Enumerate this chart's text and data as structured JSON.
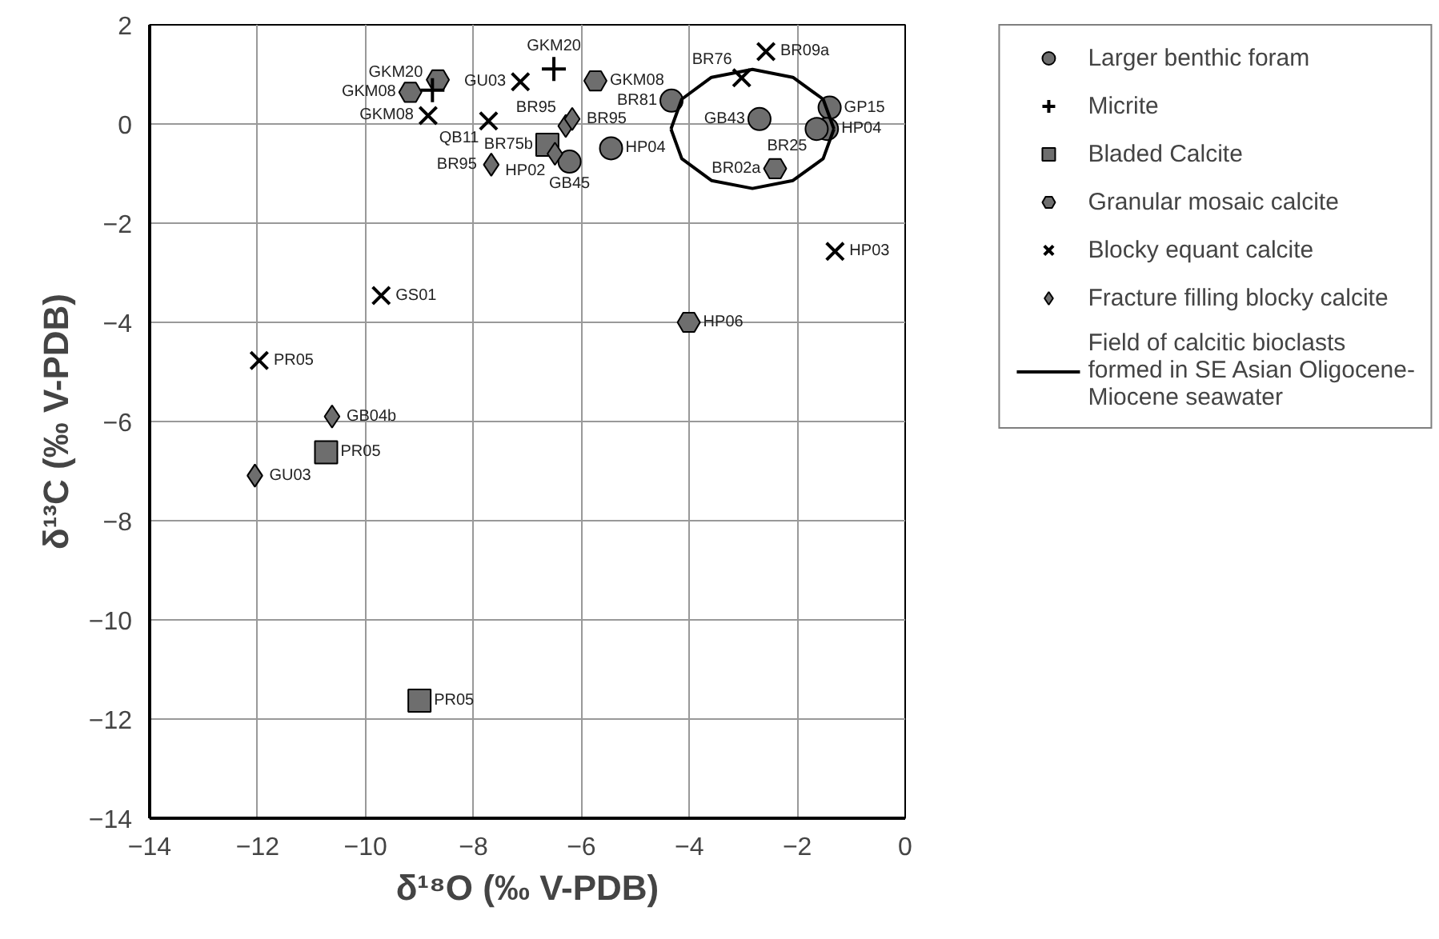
{
  "chart_data": {
    "type": "scatter",
    "xlabel": "δ¹⁸O (‰ V-PDB)",
    "ylabel": "δ¹³C (‰ V-PDB)",
    "xlim": [
      -14,
      0
    ],
    "ylim": [
      -14,
      2
    ],
    "xticks": [
      -14,
      -12,
      -10,
      -8,
      -6,
      -4,
      -2,
      0
    ],
    "yticks": [
      -14,
      -12,
      -10,
      -8,
      -6,
      -4,
      -2,
      0,
      2
    ],
    "grid": true,
    "legend": "right",
    "series": [
      {
        "name": "Larger benthic foram",
        "marker": "circle",
        "color": "#6e6e6e",
        "x": [
          -4.33,
          -2.7,
          -1.4,
          -1.45,
          -1.64,
          -5.45,
          -6.22
        ],
        "values": [
          0.47,
          0.1,
          0.33,
          -0.1,
          -0.1,
          -0.49,
          -0.76
        ],
        "value_labels": [
          "BR81",
          "GB43",
          "GP15",
          "HP04",
          "BR25",
          "HP04",
          "GB45"
        ]
      },
      {
        "name": "Micrite",
        "marker": "cross",
        "color": "#000000",
        "x": [
          -8.76,
          -6.51
        ],
        "values": [
          0.68,
          1.11
        ],
        "value_labels": [
          "GKM20",
          "GKM20"
        ]
      },
      {
        "name": "Bladed Calcite",
        "marker": "square",
        "color": "#6e6e6e",
        "x": [
          -6.63,
          -10.73,
          -9.0
        ],
        "values": [
          -0.42,
          -6.62,
          -11.63
        ],
        "value_labels": [
          "BR75b",
          "PR05",
          "PR05"
        ]
      },
      {
        "name": "Granular mosaic calcite",
        "color": "#6e6e6e",
        "x": [
          -9.17,
          -8.66,
          -5.74,
          -2.41,
          -4.01
        ],
        "values": [
          0.64,
          0.89,
          0.87,
          -0.9,
          -4.0
        ],
        "value_labels": [
          "GKM08",
          null,
          "GKM08",
          "BR02a",
          "HP06"
        ]
      },
      {
        "name": "Blocky equant calcite",
        "marker": "x",
        "color": "#000000",
        "x": [
          -8.84,
          -7.13,
          -7.72,
          -2.58,
          -3.03,
          -1.3,
          -9.71,
          -11.97
        ],
        "values": [
          0.17,
          0.85,
          0.06,
          1.46,
          0.93,
          -2.57,
          -3.46,
          -4.77
        ],
        "value_labels": [
          "GKM08",
          "GU03",
          "QB11",
          "BR09a",
          "BR76",
          "HP03",
          "GS01",
          "PR05"
        ]
      },
      {
        "name": "Fracture filling blocky calcite",
        "marker": "diamond",
        "color": "#6e6e6e",
        "x": [
          -6.29,
          -6.17,
          -6.49,
          -7.67,
          -10.62,
          -12.05
        ],
        "values": [
          -0.04,
          0.1,
          -0.6,
          -0.82,
          -5.9,
          -7.09
        ],
        "value_labels": [
          "BR95",
          "BR95",
          "HP02",
          "BR95",
          "GB04b",
          "GU03"
        ]
      },
      {
        "name": "Field of calcitic bioclasts formed in SE Asian Oligocene-Miocene seawater",
        "type": "line",
        "color": "#000000",
        "x": [
          -4.34,
          -4.14,
          -3.59,
          -2.83,
          -2.08,
          -1.52,
          -1.32
        ],
        "values": [
          -0.1,
          0.5,
          0.94,
          1.1,
          0.94,
          0.5,
          -0.1
        ]
      },
      {
        "type": "line",
        "color": "#000000",
        "x": [
          -4.34,
          -4.14,
          -3.59,
          -2.83,
          -2.08,
          -1.52,
          -1.32
        ],
        "values": [
          -0.1,
          -0.7,
          -1.14,
          -1.3,
          -1.14,
          -0.7,
          -0.1
        ]
      }
    ]
  }
}
